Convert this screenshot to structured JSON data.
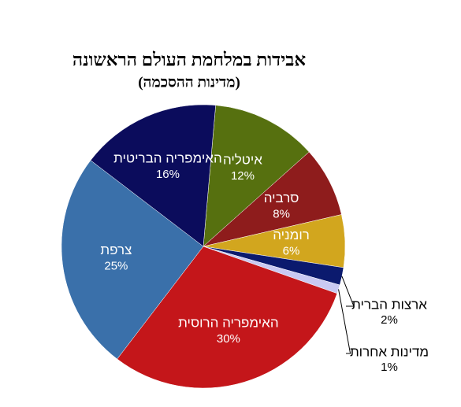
{
  "chart_data": {
    "type": "pie",
    "title": "אבידות במלחמת העולם הראשונה",
    "subtitle": "(מדינות ההסכמה)",
    "categories": [
      "איטליה",
      "סרביה",
      "רומניה",
      "ארצות הברית",
      "מדינות אחרות",
      "האימפריה הרוסית",
      "צרפת",
      "האימפריה הבריטית"
    ],
    "values": [
      12,
      8,
      6,
      2,
      1,
      30,
      25,
      16
    ],
    "value_labels": [
      "12%",
      "8%",
      "6%",
      "2%",
      "1%",
      "30%",
      "25%",
      "16%"
    ],
    "colors": [
      "#56700f",
      "#8e1c1c",
      "#d2a61e",
      "#0b1a6e",
      "#c9c9f2",
      "#c4161a",
      "#3a70aa",
      "#0b0c5c"
    ]
  }
}
